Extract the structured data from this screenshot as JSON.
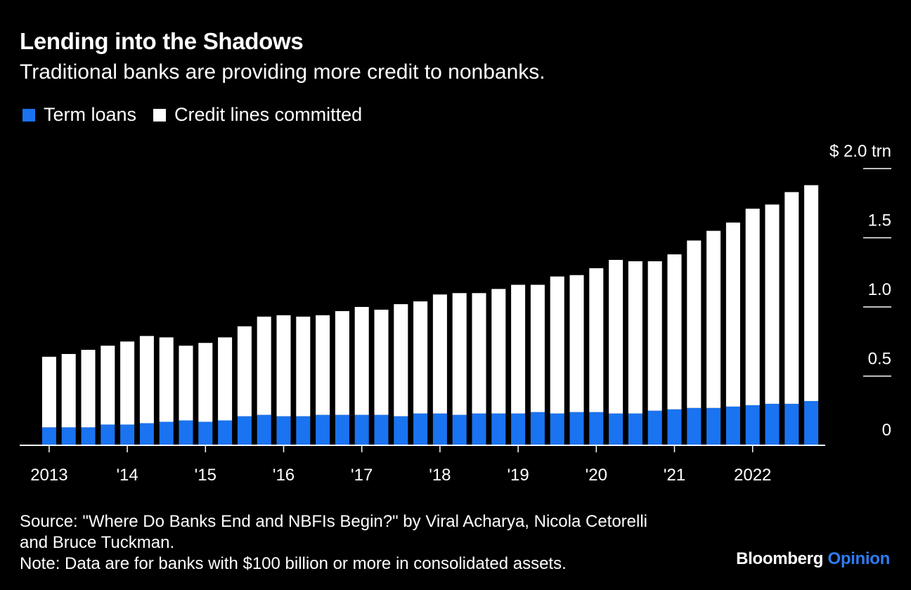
{
  "header": {
    "title": "Lending into the Shadows",
    "subtitle": "Traditional banks are providing more credit to nonbanks."
  },
  "legend": [
    {
      "label": "Term loans",
      "color": "#1a73f0"
    },
    {
      "label": "Credit lines committed",
      "color": "#ffffff"
    }
  ],
  "footer": {
    "source_line1": "Source: \"Where Do Banks End and NBFIs Begin?\" by Viral Acharya, Nicola Cetorelli",
    "source_line2": "and Bruce Tuckman.",
    "note": "Note: Data are for banks with $100 billion or more in consolidated assets.",
    "brand_main": "Bloomberg",
    "brand_accent": "Opinion"
  },
  "chart_data": {
    "type": "bar",
    "stacked": true,
    "unit": "$ trn",
    "ylim": [
      0,
      2.0
    ],
    "y_ticks": [
      {
        "value": 0,
        "label": "0"
      },
      {
        "value": 0.5,
        "label": "0.5"
      },
      {
        "value": 1.0,
        "label": "1.0"
      },
      {
        "value": 1.5,
        "label": "1.5"
      },
      {
        "value": 2.0,
        "label": "$ 2.0 trn"
      }
    ],
    "x_tick_labels": [
      "2013",
      "'14",
      "'15",
      "'16",
      "'17",
      "'18",
      "'19",
      "'20",
      "'21",
      "2022"
    ],
    "categories": [
      "2013Q1",
      "2013Q2",
      "2013Q3",
      "2013Q4",
      "2014Q1",
      "2014Q2",
      "2014Q3",
      "2014Q4",
      "2015Q1",
      "2015Q2",
      "2015Q3",
      "2015Q4",
      "2016Q1",
      "2016Q2",
      "2016Q3",
      "2016Q4",
      "2017Q1",
      "2017Q2",
      "2017Q3",
      "2017Q4",
      "2018Q1",
      "2018Q2",
      "2018Q3",
      "2018Q4",
      "2019Q1",
      "2019Q2",
      "2019Q3",
      "2019Q4",
      "2020Q1",
      "2020Q2",
      "2020Q3",
      "2020Q4",
      "2021Q1",
      "2021Q2",
      "2021Q3",
      "2021Q4",
      "2022Q1",
      "2022Q2",
      "2022Q3",
      "2022Q4"
    ],
    "series": [
      {
        "name": "Term loans",
        "color": "#1a73f0",
        "values": [
          0.13,
          0.13,
          0.13,
          0.15,
          0.15,
          0.16,
          0.17,
          0.18,
          0.17,
          0.18,
          0.21,
          0.22,
          0.21,
          0.21,
          0.22,
          0.22,
          0.22,
          0.22,
          0.21,
          0.23,
          0.23,
          0.22,
          0.23,
          0.23,
          0.23,
          0.24,
          0.23,
          0.24,
          0.24,
          0.23,
          0.23,
          0.25,
          0.26,
          0.27,
          0.27,
          0.28,
          0.29,
          0.3,
          0.3,
          0.32
        ]
      },
      {
        "name": "Credit lines committed",
        "color": "#ffffff",
        "values": [
          0.51,
          0.53,
          0.56,
          0.57,
          0.6,
          0.63,
          0.61,
          0.54,
          0.57,
          0.6,
          0.65,
          0.71,
          0.73,
          0.72,
          0.72,
          0.75,
          0.78,
          0.76,
          0.81,
          0.81,
          0.86,
          0.88,
          0.87,
          0.9,
          0.93,
          0.92,
          0.99,
          0.99,
          1.04,
          1.11,
          1.1,
          1.08,
          1.12,
          1.21,
          1.28,
          1.33,
          1.42,
          1.44,
          1.53,
          1.56
        ]
      }
    ],
    "grid": false
  }
}
